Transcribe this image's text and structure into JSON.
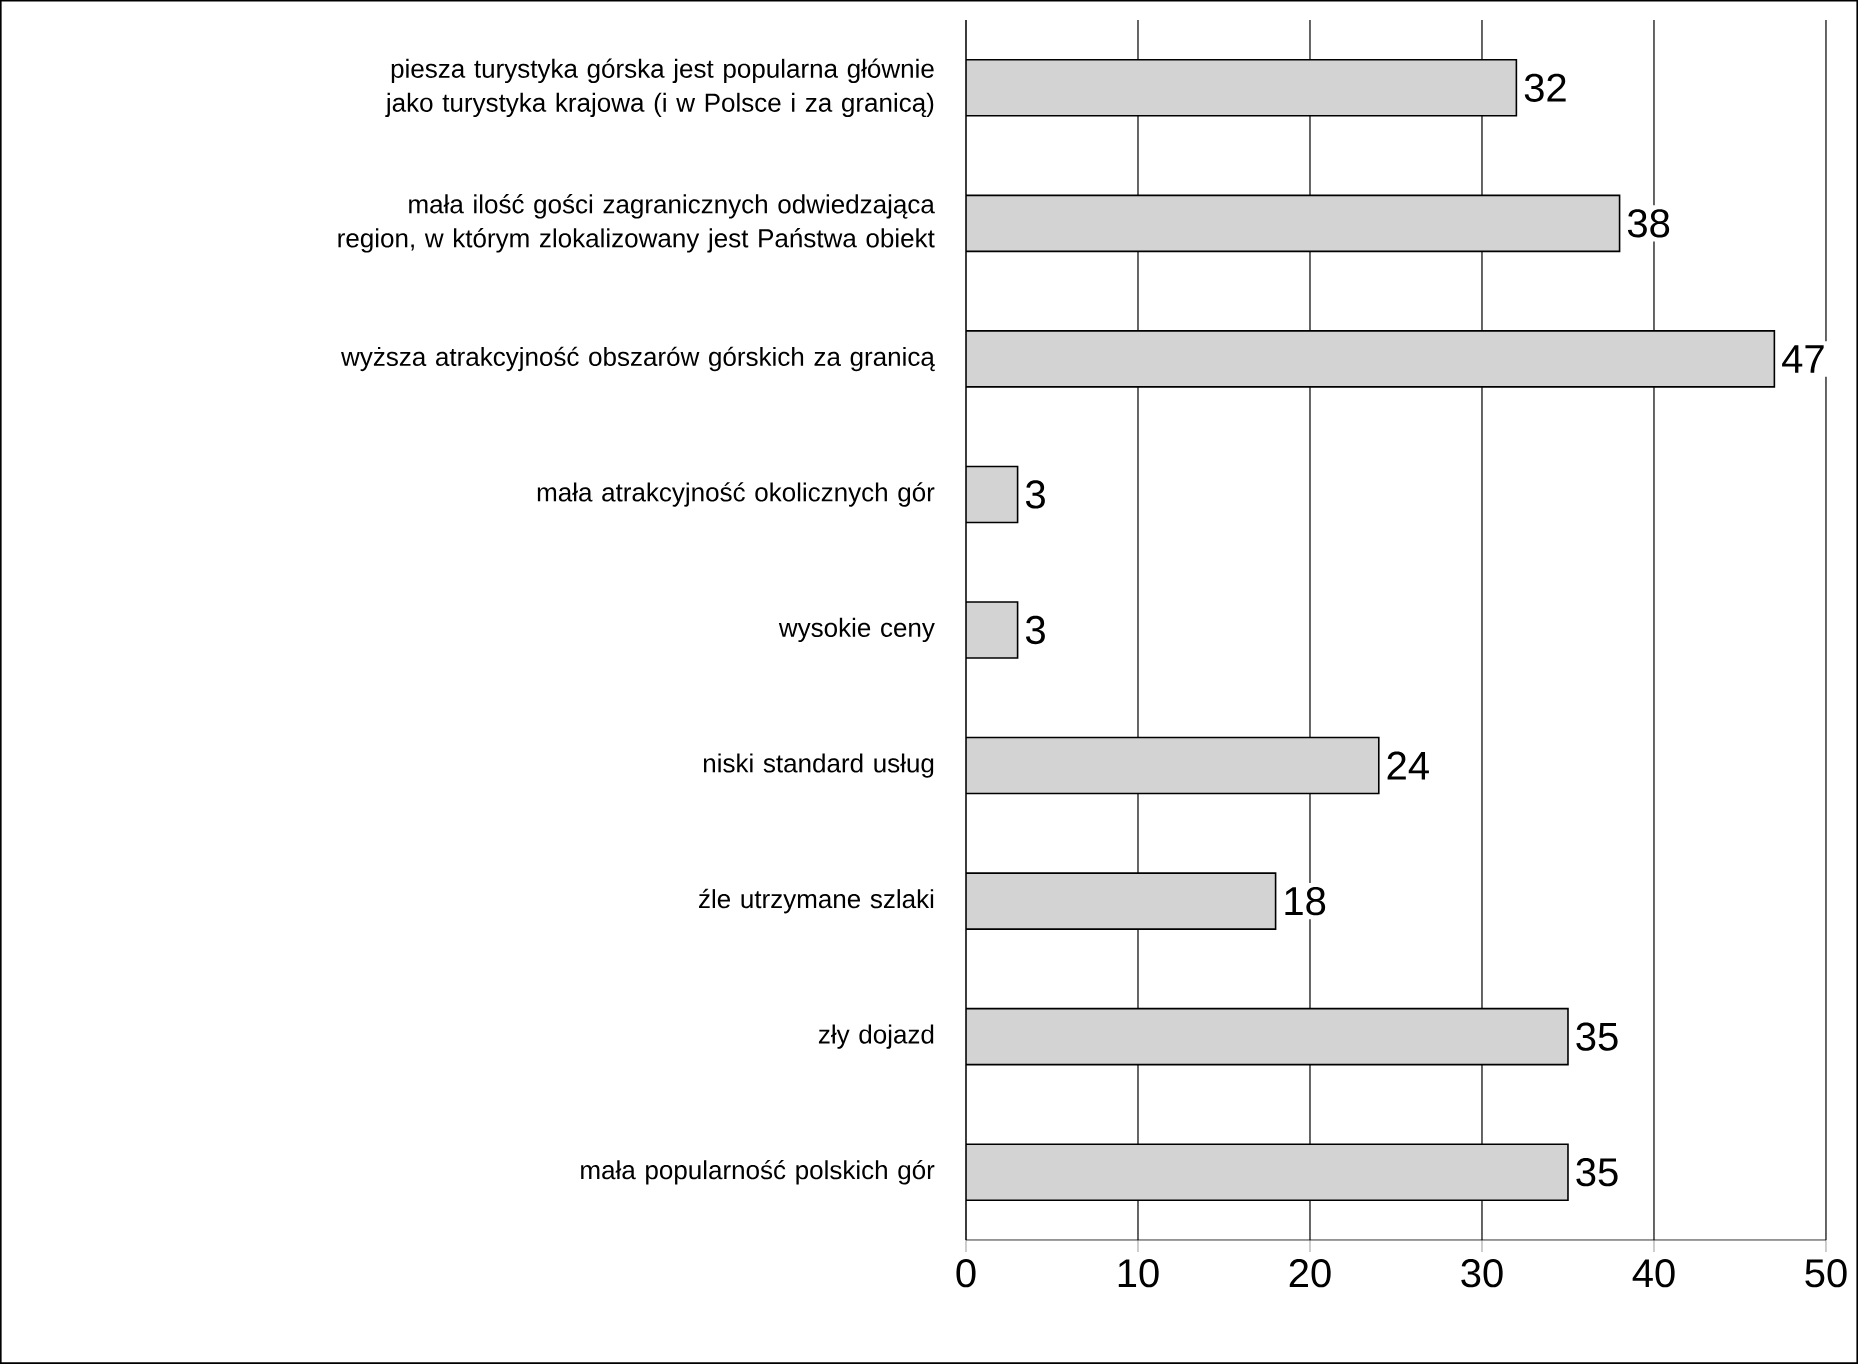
{
  "chart_data": {
    "type": "bar",
    "orientation": "horizontal",
    "categories": [
      "piesza turystyka górska jest popularna głównie jako turystyka krajowa (i w Polsce i za granicą)",
      "mała ilość gości zagranicznych odwiedzająca region, w którym zlokalizowany jest Państwa obiekt",
      "wyższa atrakcyjność obszarów górskich za granicą",
      "mała atrakcyjność okolicznych gór",
      "wysokie ceny",
      "niski standard usług",
      "źle utrzymane szlaki",
      "zły dojazd",
      "mała popularność polskich gór"
    ],
    "values": [
      32,
      38,
      47,
      3,
      3,
      24,
      18,
      35,
      35
    ],
    "color": "#d3d3d3",
    "xlim": [
      0,
      50
    ],
    "xticks": [
      0,
      10,
      20,
      30,
      40,
      50
    ],
    "grid": "x",
    "data_labels": true
  }
}
